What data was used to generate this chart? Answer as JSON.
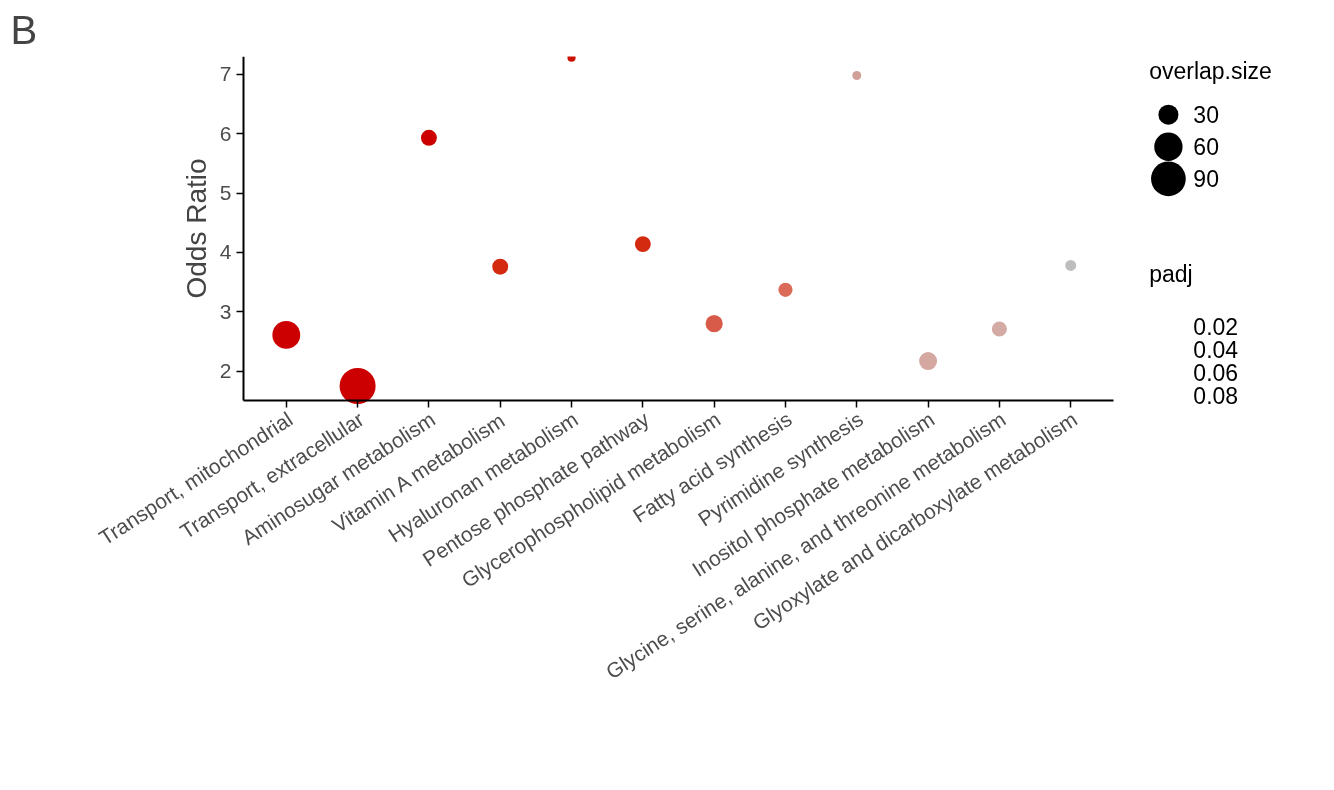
{
  "chart_data": {
    "type": "bubble",
    "title": "B",
    "ylabel": "Odds Ratio",
    "legend_title": "overlap.size",
    "annotations": [
      "padj",
      "0.02",
      "0.04",
      "0.06",
      "0.08"
    ],
    "categories": [
      "Transport, mitochondrial",
      "Transport, extracellular",
      "Aminosugar metabolism",
      "Vitamin A metabolism",
      "Hyaluronan metabolism",
      "Pentose phosphate pathway",
      "Glycerophospholipid metabolism",
      "Fatty acid synthesis",
      "Pyrimidine synthesis",
      "Inositol phosphate metabolism",
      "Glycine, serine, alanine, and threonine metabolism",
      "Glyoxylate and dicarboxylate metabolism"
    ],
    "values": [
      2.61,
      1.75,
      5.93,
      3.76,
      7.28,
      4.14,
      2.8,
      3.37,
      6.98,
      2.17,
      2.71,
      3.78
    ],
    "sizes": [
      58,
      97,
      19,
      19,
      5,
      19,
      22,
      15,
      6,
      24,
      17,
      9
    ],
    "size_legend": [
      30,
      60,
      90
    ],
    "colors": [
      "#cc0000",
      "#cc0000",
      "#cc0000",
      "#d42a10",
      "#cc1100",
      "#d42a10",
      "#d85a48",
      "#dc6a58",
      "#d0a098",
      "#d4a8a0",
      "#d4aaa4",
      "#bebebe"
    ],
    "ylim": [
      1.5,
      7.3
    ],
    "yticks": [
      2,
      3,
      4,
      5,
      6,
      7
    ],
    "grid": false
  }
}
